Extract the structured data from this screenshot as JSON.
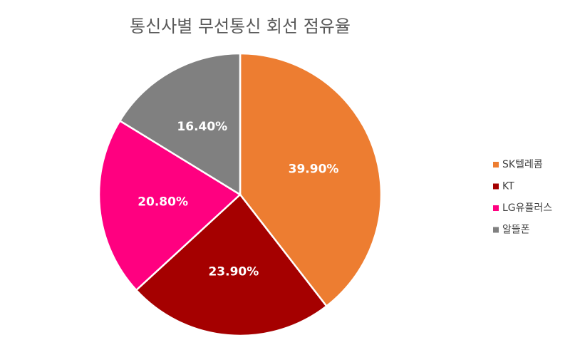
{
  "chart_data": {
    "type": "pie",
    "title": "통신사별 무선통신 회선 점유율",
    "categories": [
      "SK텔레콤",
      "KT",
      "LG유플러스",
      "알뜰폰"
    ],
    "values": [
      39.9,
      23.9,
      20.8,
      16.4
    ],
    "value_labels": [
      "39.90%",
      "23.90%",
      "20.80%",
      "16.40%"
    ],
    "colors": [
      "#ed7d31",
      "#a50000",
      "#ff0080",
      "#808080"
    ],
    "legend": "right"
  }
}
